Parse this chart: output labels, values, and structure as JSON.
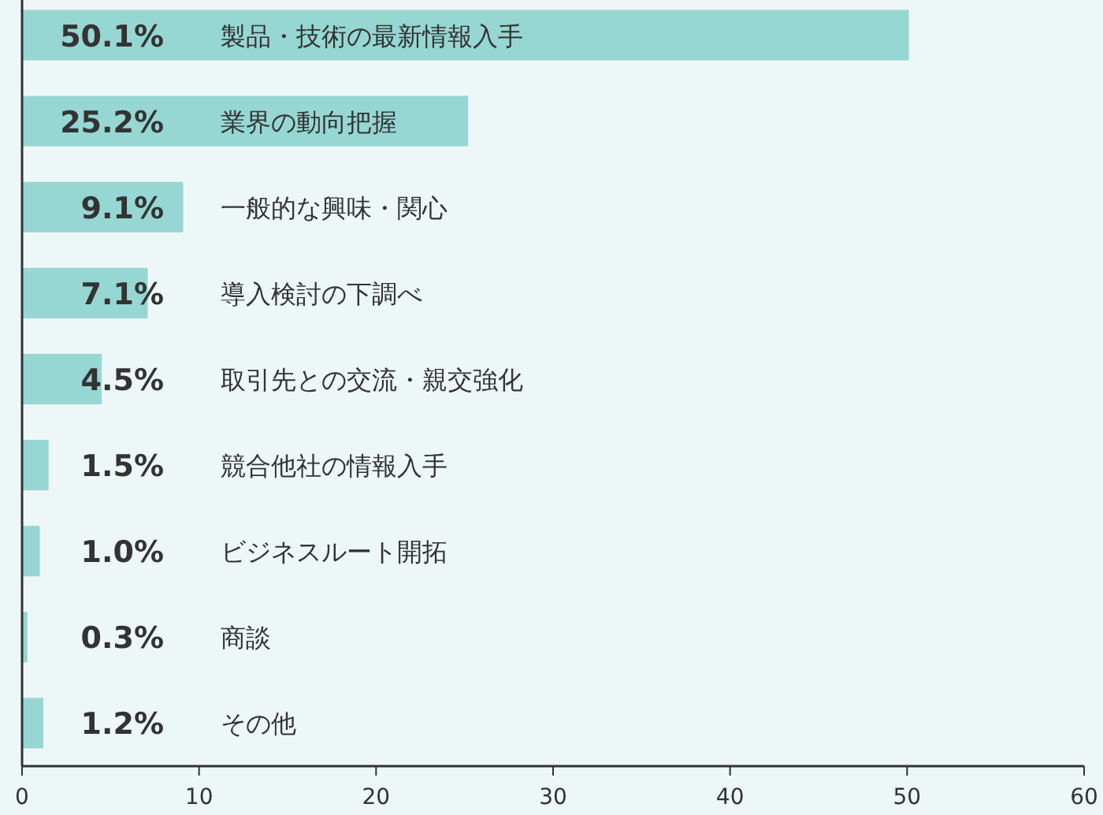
{
  "chart_data": {
    "type": "bar",
    "orientation": "horizontal",
    "categories": [
      "製品・技術の最新情報入手",
      "業界の動向把握",
      "一般的な興味・関心",
      "導入検討の下調べ",
      "取引先との交流・親交強化",
      "競合他社の情報入手",
      "ビジネスルート開拓",
      "商談",
      "その他"
    ],
    "values": [
      50.1,
      25.2,
      9.1,
      7.1,
      4.5,
      1.5,
      1.0,
      0.3,
      1.2
    ],
    "value_labels": [
      "50.1%",
      "25.2%",
      "9.1%",
      "7.1%",
      "4.5%",
      "1.5%",
      "1.0%",
      "0.3%",
      "1.2%"
    ],
    "color": "#96d6d3",
    "xlim": [
      0,
      60
    ],
    "xticks": [
      0,
      10,
      20,
      30,
      40,
      50,
      60
    ],
    "grid": false
  }
}
